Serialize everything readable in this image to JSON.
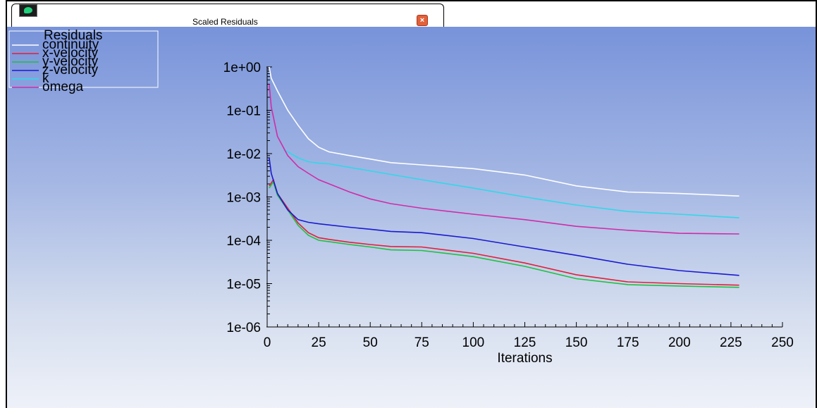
{
  "window": {
    "title": "Scaled Residuals",
    "close_label": "×",
    "app_icon": "fluent-app-icon"
  },
  "colors": {
    "continuity": "#ffffff",
    "x-velocity": "#e0203a",
    "y-velocity": "#20c040",
    "z-velocity": "#1a1ad0",
    "k": "#30d8e8",
    "omega": "#d02ca8"
  },
  "chart_data": {
    "type": "line",
    "legend_title": "Residuals",
    "legend_position": "top-left",
    "xlabel": "Iterations",
    "ylabel": "",
    "xlim": [
      0,
      250
    ],
    "ylim": [
      1e-06,
      1
    ],
    "yscale": "log",
    "xticks": [
      0,
      25,
      50,
      75,
      100,
      125,
      150,
      175,
      200,
      225,
      250
    ],
    "yticks": [
      "1e+00",
      "1e-01",
      "1e-02",
      "1e-03",
      "1e-04",
      "1e-05",
      "1e-06"
    ],
    "grid": false,
    "series": [
      {
        "name": "continuity",
        "points": [
          [
            1,
            1.0
          ],
          [
            2,
            0.55
          ],
          [
            5,
            0.28
          ],
          [
            10,
            0.1
          ],
          [
            15,
            0.045
          ],
          [
            20,
            0.022
          ],
          [
            25,
            0.014
          ],
          [
            30,
            0.011
          ],
          [
            40,
            0.009
          ],
          [
            50,
            0.0075
          ],
          [
            60,
            0.0062
          ],
          [
            75,
            0.0055
          ],
          [
            100,
            0.0045
          ],
          [
            125,
            0.0032
          ],
          [
            150,
            0.0018
          ],
          [
            175,
            0.0013
          ],
          [
            200,
            0.0012
          ],
          [
            229,
            0.00105
          ]
        ]
      },
      {
        "name": "x-velocity",
        "points": [
          [
            1,
            0.0018
          ],
          [
            2,
            0.0021
          ],
          [
            3,
            0.0025
          ],
          [
            5,
            0.0012
          ],
          [
            10,
            0.00055
          ],
          [
            15,
            0.00025
          ],
          [
            20,
            0.00015
          ],
          [
            25,
            0.000115
          ],
          [
            30,
            0.000105
          ],
          [
            40,
            9e-05
          ],
          [
            50,
            8e-05
          ],
          [
            60,
            7.2e-05
          ],
          [
            75,
            7e-05
          ],
          [
            100,
            5e-05
          ],
          [
            125,
            3e-05
          ],
          [
            150,
            1.6e-05
          ],
          [
            175,
            1.1e-05
          ],
          [
            200,
            1e-05
          ],
          [
            229,
            9.2e-06
          ]
        ]
      },
      {
        "name": "y-velocity",
        "points": [
          [
            1,
            0.0016
          ],
          [
            2,
            0.0019
          ],
          [
            3,
            0.0022
          ],
          [
            5,
            0.0011
          ],
          [
            10,
            0.0005
          ],
          [
            15,
            0.00022
          ],
          [
            20,
            0.00013
          ],
          [
            25,
            0.0001
          ],
          [
            30,
            9.3e-05
          ],
          [
            40,
            8e-05
          ],
          [
            50,
            7e-05
          ],
          [
            60,
            6e-05
          ],
          [
            75,
            5.8e-05
          ],
          [
            100,
            4.2e-05
          ],
          [
            125,
            2.5e-05
          ],
          [
            150,
            1.3e-05
          ],
          [
            175,
            9.5e-06
          ],
          [
            200,
            8.8e-06
          ],
          [
            229,
            8.2e-06
          ]
        ]
      },
      {
        "name": "z-velocity",
        "points": [
          [
            1,
            0.008
          ],
          [
            2,
            0.0035
          ],
          [
            5,
            0.0012
          ],
          [
            10,
            0.0005
          ],
          [
            15,
            0.0003
          ],
          [
            20,
            0.00026
          ],
          [
            25,
            0.00024
          ],
          [
            40,
            0.0002
          ],
          [
            50,
            0.00018
          ],
          [
            60,
            0.00016
          ],
          [
            75,
            0.00015
          ],
          [
            100,
            0.00011
          ],
          [
            125,
            7e-05
          ],
          [
            150,
            4.5e-05
          ],
          [
            175,
            2.8e-05
          ],
          [
            200,
            2e-05
          ],
          [
            229,
            1.55e-05
          ]
        ]
      },
      {
        "name": "k",
        "points": [
          [
            8,
            0.012
          ],
          [
            10,
            0.011
          ],
          [
            15,
            0.008
          ],
          [
            20,
            0.0065
          ],
          [
            25,
            0.006
          ],
          [
            30,
            0.0058
          ],
          [
            40,
            0.0048
          ],
          [
            50,
            0.004
          ],
          [
            75,
            0.0025
          ],
          [
            100,
            0.0016
          ],
          [
            125,
            0.001
          ],
          [
            150,
            0.00065
          ],
          [
            175,
            0.00046
          ],
          [
            200,
            0.0004
          ],
          [
            229,
            0.00033
          ]
        ]
      },
      {
        "name": "omega",
        "points": [
          [
            1,
            0.4
          ],
          [
            2,
            0.12
          ],
          [
            5,
            0.025
          ],
          [
            10,
            0.009
          ],
          [
            15,
            0.005
          ],
          [
            20,
            0.0035
          ],
          [
            25,
            0.0025
          ],
          [
            40,
            0.0013
          ],
          [
            50,
            0.0009
          ],
          [
            60,
            0.0007
          ],
          [
            75,
            0.00055
          ],
          [
            100,
            0.0004
          ],
          [
            125,
            0.0003
          ],
          [
            150,
            0.00021
          ],
          [
            175,
            0.00017
          ],
          [
            200,
            0.000145
          ],
          [
            229,
            0.00014
          ]
        ]
      }
    ]
  }
}
